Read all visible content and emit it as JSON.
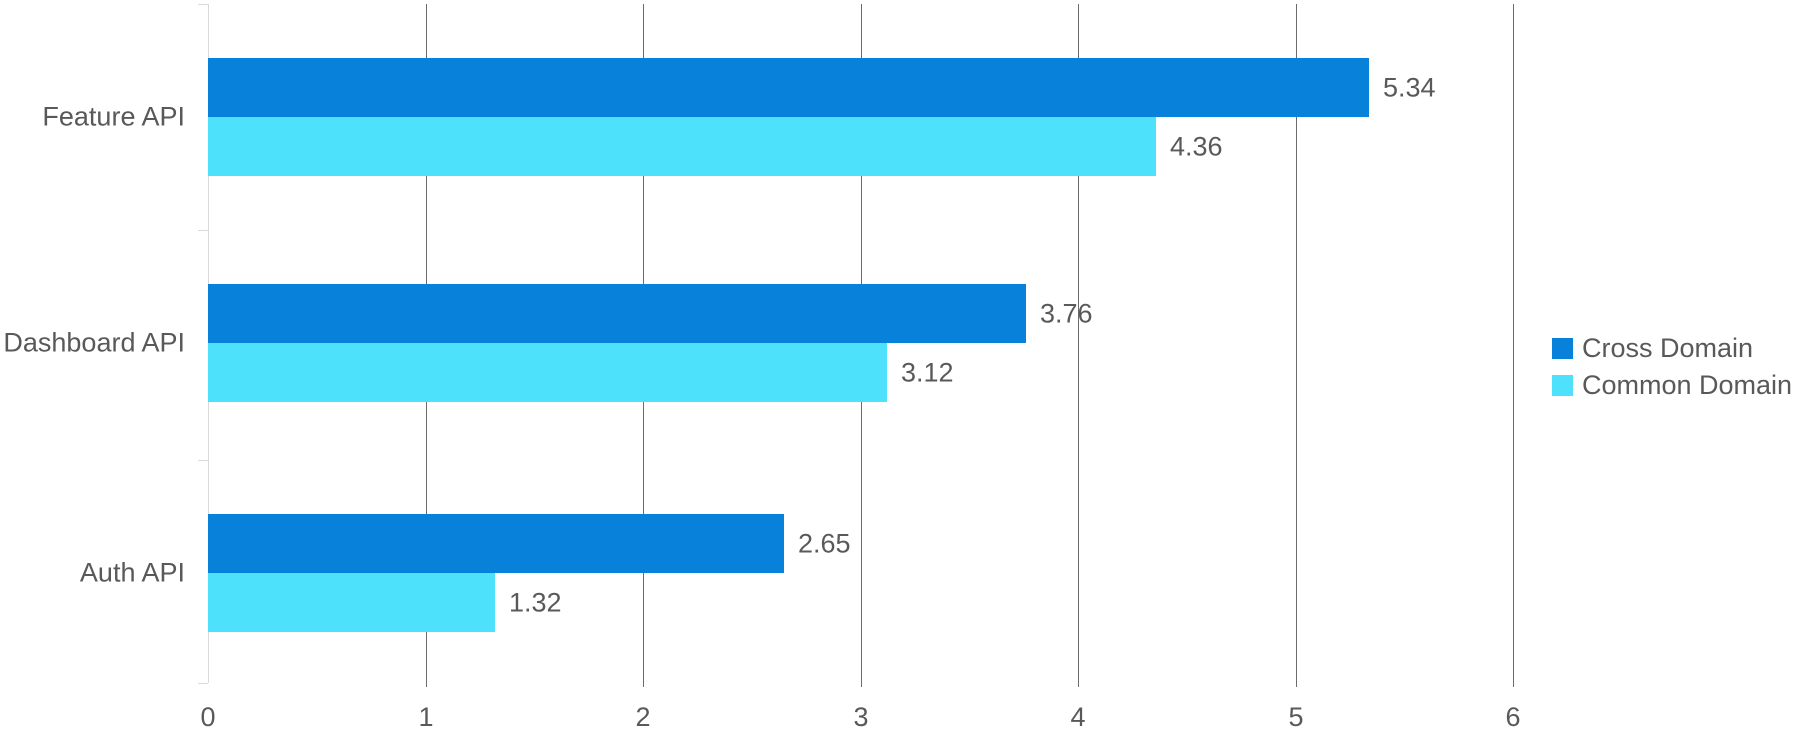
{
  "chart_data": {
    "type": "bar",
    "orientation": "horizontal",
    "title": "",
    "xlabel": "",
    "ylabel": "",
    "categories": [
      "Feature API",
      "Dashboard API",
      "Auth API"
    ],
    "series": [
      {
        "name": "Cross Domain",
        "color": "#0781d9",
        "values": [
          5.34,
          3.76,
          2.65
        ],
        "labels": [
          "5.34",
          "3.76",
          "2.65"
        ]
      },
      {
        "name": "Common Domain",
        "color": "#4ee1fc",
        "values": [
          4.36,
          3.12,
          1.32
        ],
        "labels": [
          "4.36",
          "3.12",
          "1.32"
        ]
      }
    ],
    "xlim": [
      0,
      6
    ],
    "x_ticks": [
      0,
      1,
      2,
      3,
      4,
      5,
      6
    ],
    "x_tick_labels": [
      "0",
      "1",
      "2",
      "3",
      "4",
      "5",
      "6"
    ],
    "grid": true,
    "value_labels": true,
    "legend_position": "right-center"
  },
  "colors": {
    "text": "#595959",
    "gridline": "#6b6b6b",
    "category_axis": "#d9d9d9",
    "background": "#ffffff"
  }
}
